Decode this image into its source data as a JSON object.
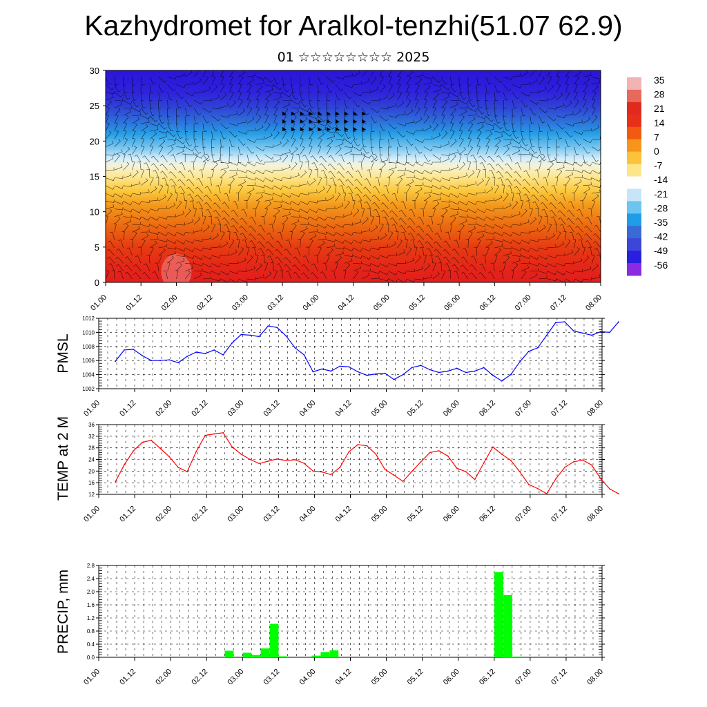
{
  "title": "Kazhydromet for Aralkol-tenzhi(51.07 62.9)",
  "subtitle": "01 ☆☆☆☆☆☆☆☆ 2025",
  "time_labels": [
    "01.00",
    "01.12",
    "02.00",
    "02.12",
    "03.00",
    "03.12",
    "04.00",
    "04.12",
    "05.00",
    "05.12",
    "06.00",
    "06.12",
    "07.00",
    "07.12",
    "08.00"
  ],
  "colors": {
    "pmsl_line": "#0000ff",
    "temp_line": "#ff0000",
    "precip_bar": "#00ff00"
  },
  "chart_data": [
    {
      "type": "heatmap",
      "name": "temperature-wind cross section",
      "y_ticks": [
        "0",
        "5",
        "10",
        "15",
        "20",
        "25",
        "30"
      ],
      "ylim": [
        0,
        30
      ],
      "xlim": [
        0,
        168
      ],
      "colorbar": {
        "labels": [
          "35",
          "28",
          "21",
          "14",
          "7",
          "0",
          "-7",
          "-14",
          "-21",
          "-28",
          "-35",
          "-42",
          "-49",
          "-56"
        ],
        "colors": [
          "#f4b3b3",
          "#e8695c",
          "#e02a20",
          "#e83018",
          "#f25a10",
          "#f7941a",
          "#fbc23c",
          "#fde68a",
          "#ffffff",
          "#c6e6f7",
          "#6cc4f0",
          "#1f9ee8",
          "#3a6ad6",
          "#3c46d8",
          "#2a1ee0",
          "#8a2be2"
        ]
      },
      "levels_y": [
        0,
        2,
        5,
        8,
        11,
        13,
        15,
        16.5,
        17.5,
        19,
        21,
        23,
        25,
        27,
        30
      ],
      "level_colors": [
        "#e21d1d",
        "#e42518",
        "#e63b12",
        "#ec6a10",
        "#f49a1c",
        "#fbc93e",
        "#fde792",
        "#f5f3d8",
        "#d6eef9",
        "#7cc8f1",
        "#279fe6",
        "#2e6ad8",
        "#2f3fd6",
        "#2e22dc",
        "#2a14d8"
      ]
    },
    {
      "type": "line",
      "ylabel": "PMSL",
      "ylim": [
        1002,
        1012
      ],
      "y_ticks": [
        "1002",
        "1004",
        "1006",
        "1008",
        "1010",
        "1012"
      ],
      "x": [
        0,
        3,
        6,
        9,
        12,
        15,
        18,
        21,
        24,
        27,
        30,
        33,
        36,
        39,
        42,
        45,
        48,
        51,
        54,
        57,
        60,
        63,
        66,
        69,
        72,
        75,
        78,
        81,
        84,
        87,
        90,
        93,
        96,
        99,
        102,
        105,
        108,
        111,
        114,
        117,
        120,
        123,
        126,
        129,
        132,
        135,
        138,
        141,
        144,
        147,
        150,
        153,
        156,
        159,
        162,
        165,
        168
      ],
      "values": [
        1005.9,
        1007.5,
        1007.6,
        1006.7,
        1006.0,
        1006.0,
        1006.1,
        1005.7,
        1006.6,
        1007.2,
        1007.0,
        1007.5,
        1006.8,
        1008.5,
        1009.7,
        1009.6,
        1009.4,
        1010.9,
        1010.7,
        1009.5,
        1007.8,
        1006.8,
        1004.4,
        1004.8,
        1004.5,
        1005.2,
        1005.1,
        1004.4,
        1003.9,
        1004.1,
        1004.2,
        1003.3,
        1004.0,
        1005.0,
        1005.3,
        1004.7,
        1004.3,
        1004.5,
        1004.9,
        1004.3,
        1004.5,
        1005.0,
        1003.9,
        1003.1,
        1004.0,
        1005.8,
        1007.3,
        1007.8,
        1009.6,
        1011.4,
        1011.5,
        1010.2,
        1009.9,
        1009.6,
        1010.1,
        1010.0,
        1011.5
      ],
      "series": [
        {
          "name": "",
          "color": "#0000ff"
        }
      ]
    },
    {
      "type": "line",
      "ylabel": "TEMP at 2 M",
      "ylim": [
        12,
        36
      ],
      "y_ticks": [
        "12",
        "16",
        "20",
        "24",
        "28",
        "32",
        "36"
      ],
      "x": [
        0,
        3,
        6,
        9,
        12,
        15,
        18,
        21,
        24,
        27,
        30,
        33,
        36,
        39,
        42,
        45,
        48,
        51,
        54,
        57,
        60,
        63,
        66,
        69,
        72,
        75,
        78,
        81,
        84,
        87,
        90,
        93,
        96,
        99,
        102,
        105,
        108,
        111,
        114,
        117,
        120,
        123,
        126,
        129,
        132,
        135,
        138,
        141,
        144,
        147,
        150,
        153,
        156,
        159,
        162,
        165,
        168
      ],
      "values": [
        16.3,
        22.2,
        26.9,
        29.9,
        30.6,
        27.8,
        25.0,
        21.3,
        19.8,
        26.7,
        32.3,
        32.8,
        33.2,
        28.3,
        25.8,
        24.0,
        22.6,
        23.4,
        24.2,
        23.6,
        23.9,
        22.7,
        20.0,
        19.7,
        18.8,
        21.3,
        26.7,
        29.1,
        28.7,
        25.8,
        20.6,
        18.6,
        16.5,
        19.9,
        23.2,
        26.4,
        27.0,
        25.2,
        21.0,
        19.8,
        17.1,
        22.8,
        28.3,
        25.8,
        23.7,
        19.8,
        15.4,
        14.0,
        12.2,
        17.3,
        21.3,
        23.2,
        23.8,
        22.1,
        17.4,
        13.9,
        12.2
      ],
      "series": [
        {
          "name": "",
          "color": "#ff0000"
        }
      ]
    },
    {
      "type": "bar",
      "ylabel": "PRECIP, mm",
      "ylim": [
        0,
        2.8
      ],
      "y_ticks": [
        "0.0",
        "0.4",
        "0.8",
        "1.2",
        "1.6",
        "2.0",
        "2.4",
        "2.8"
      ],
      "x": [
        38,
        44,
        47,
        50,
        53,
        56,
        67,
        70,
        73,
        128,
        131,
        134
      ],
      "values": [
        0.2,
        0.14,
        0.07,
        0.27,
        1.02,
        0.03,
        0.05,
        0.16,
        0.21,
        2.6,
        1.9,
        0.02
      ],
      "series": [
        {
          "name": "",
          "color": "#00ff00"
        }
      ]
    }
  ]
}
